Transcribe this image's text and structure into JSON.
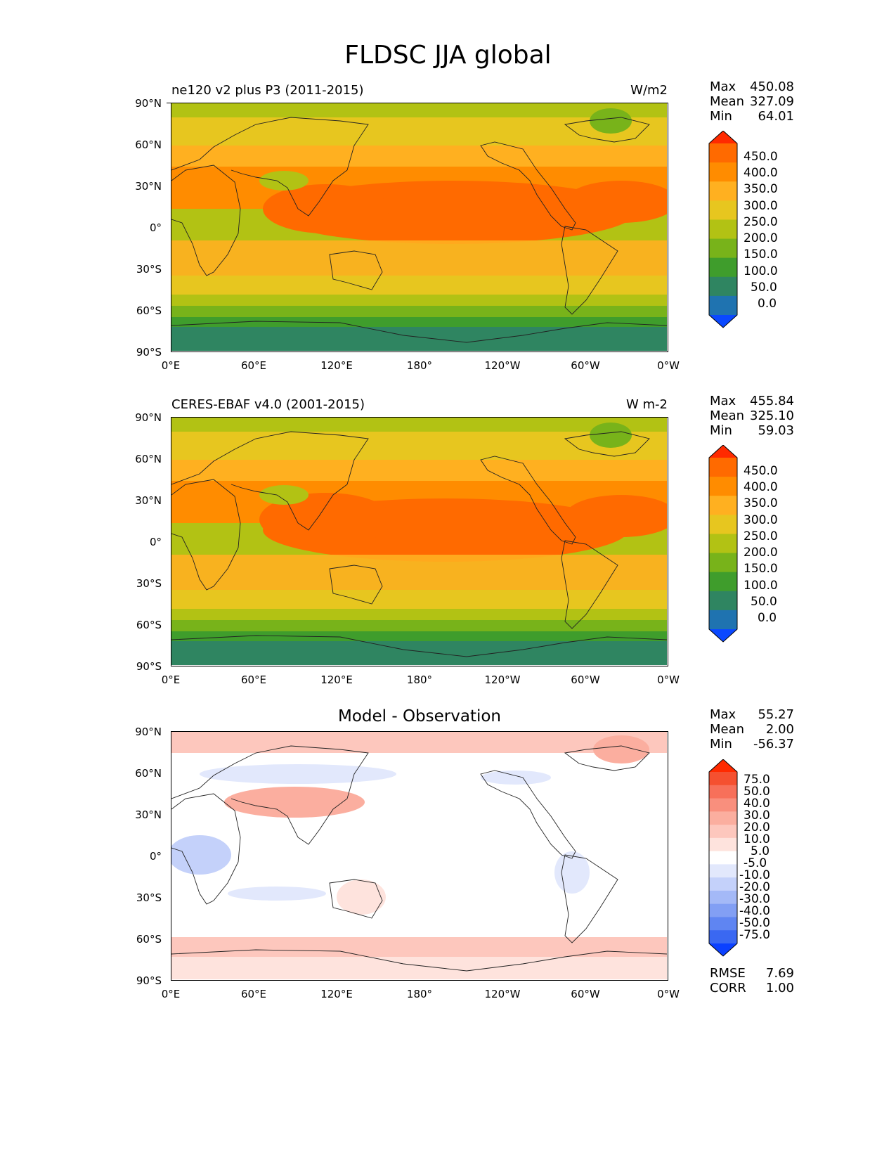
{
  "figure_title": "FLDSC JJA global",
  "lat_ticks": [
    "90°N",
    "60°N",
    "30°N",
    "0°",
    "30°S",
    "60°S",
    "90°S"
  ],
  "lon_ticks": [
    "0°E",
    "60°E",
    "120°E",
    "180°",
    "120°W",
    "60°W",
    "0°W"
  ],
  "panels": [
    {
      "left_title": "ne120 v2 plus P3 (2011-2015)",
      "right_title": "W/m2",
      "center_title": "",
      "stats": [
        {
          "label": "Max",
          "value": "450.08"
        },
        {
          "label": "Mean",
          "value": "327.09"
        },
        {
          "label": "Min",
          "value": "64.01"
        }
      ],
      "colorbar_labels": [
        "450.0",
        "400.0",
        "350.0",
        "300.0",
        "250.0",
        "200.0",
        "150.0",
        "100.0",
        "50.0",
        "0.0"
      ],
      "colorbar_colors": [
        "#ff2a00",
        "#ff6a00",
        "#ff8c00",
        "#ffb020",
        "#e7c61f",
        "#b2c214",
        "#78b31a",
        "#3f9d2c",
        "#2f8561",
        "#1f73b0",
        "#0a48ff"
      ]
    },
    {
      "left_title": "CERES-EBAF v4.0 (2001-2015)",
      "right_title": "W m-2",
      "center_title": "",
      "stats": [
        {
          "label": "Max",
          "value": "455.84"
        },
        {
          "label": "Mean",
          "value": "325.10"
        },
        {
          "label": "Min",
          "value": "59.03"
        }
      ],
      "colorbar_labels": [
        "450.0",
        "400.0",
        "350.0",
        "300.0",
        "250.0",
        "200.0",
        "150.0",
        "100.0",
        "50.0",
        "0.0"
      ],
      "colorbar_colors": [
        "#ff2a00",
        "#ff6a00",
        "#ff8c00",
        "#ffb020",
        "#e7c61f",
        "#b2c214",
        "#78b31a",
        "#3f9d2c",
        "#2f8561",
        "#1f73b0",
        "#0a48ff"
      ]
    },
    {
      "left_title": "",
      "right_title": "",
      "center_title": "Model - Observation",
      "stats": [
        {
          "label": "Max",
          "value": "55.27"
        },
        {
          "label": "Mean",
          "value": "2.00"
        },
        {
          "label": "Min",
          "value": "-56.37"
        }
      ],
      "colorbar_labels": [
        "75.0",
        "50.0",
        "40.0",
        "30.0",
        "20.0",
        "10.0",
        "5.0",
        "-5.0",
        "-10.0",
        "-20.0",
        "-30.0",
        "-40.0",
        "-50.0",
        "-75.0"
      ],
      "colorbar_colors": [
        "#ff2a00",
        "#f55030",
        "#f7705a",
        "#f98f7d",
        "#fbae9f",
        "#fdc7bd",
        "#fee3dd",
        "#ffffff",
        "#e2e8fc",
        "#c4d1fa",
        "#a4b9f7",
        "#829ff4",
        "#5f85f2",
        "#3a68f2",
        "#0b40ff"
      ],
      "extra_stats": [
        {
          "label": "RMSE",
          "value": "7.69"
        },
        {
          "label": "CORR",
          "value": "1.00"
        }
      ]
    }
  ]
}
